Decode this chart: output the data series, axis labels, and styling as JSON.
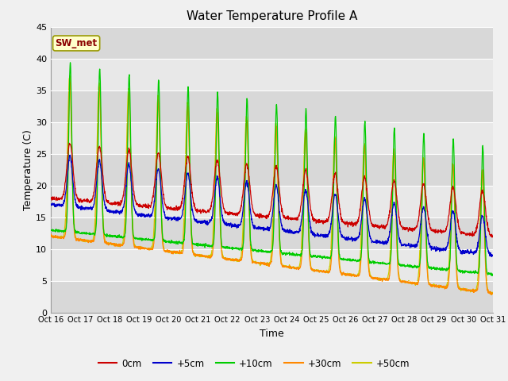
{
  "title": "Water Temperature Profile A",
  "xlabel": "Time",
  "ylabel": "Temperature (C)",
  "ylim": [
    0,
    45
  ],
  "xlim": [
    0,
    15
  ],
  "fig_bg": "#f0f0f0",
  "plot_bg": "#e0e0e0",
  "series_colors": [
    "#cc0000",
    "#0000cc",
    "#00cc00",
    "#ff8800",
    "#cccc00"
  ],
  "series_labels": [
    "0cm",
    "+5cm",
    "+10cm",
    "+30cm",
    "+50cm"
  ],
  "tick_labels": [
    "Oct 16",
    "Oct 17",
    "Oct 18",
    "Oct 19",
    "Oct 20",
    "Oct 21",
    "Oct 22",
    "Oct 23",
    "Oct 24",
    "Oct 25",
    "Oct 26",
    "Oct 27",
    "Oct 28",
    "Oct 29",
    "Oct 30",
    "Oct 31"
  ],
  "annotation_label": "SW_met",
  "grid_color": "#ffffff",
  "band_colors": [
    "#d8d8d8",
    "#e8e8e8"
  ]
}
